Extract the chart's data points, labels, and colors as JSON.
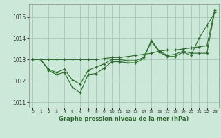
{
  "title": "Graphe pression niveau de la mer (hPa)",
  "background_color": "#cce8d8",
  "plot_bg_color": "#cce8d8",
  "grid_color": "#aaccbb",
  "line_color": "#2d6a2d",
  "xlim": [
    -0.5,
    23.5
  ],
  "ylim": [
    1010.75,
    1015.6
  ],
  "yticks": [
    1011,
    1012,
    1013,
    1014,
    1015
  ],
  "xticks": [
    0,
    1,
    2,
    3,
    4,
    5,
    6,
    7,
    8,
    9,
    10,
    11,
    12,
    13,
    14,
    15,
    16,
    17,
    18,
    19,
    20,
    21,
    22,
    23
  ],
  "series": [
    [
      1013.0,
      1013.0,
      1012.5,
      1012.3,
      1012.4,
      1011.7,
      1011.45,
      1012.3,
      1012.35,
      1012.6,
      1012.9,
      1012.9,
      1012.85,
      1012.85,
      1013.05,
      1013.85,
      1013.35,
      1013.15,
      1013.15,
      1013.35,
      1013.2,
      1014.0,
      1014.6,
      1015.2
    ],
    [
      1013.0,
      1013.0,
      1012.55,
      1012.4,
      1012.55,
      1012.05,
      1011.85,
      1012.5,
      1012.65,
      1012.8,
      1013.0,
      1013.0,
      1012.95,
      1012.95,
      1013.1,
      1013.9,
      1013.4,
      1013.2,
      1013.25,
      1013.4,
      1013.3,
      1013.3,
      1013.3,
      1015.3
    ],
    [
      1013.0,
      1013.0,
      1013.0,
      1013.0,
      1013.0,
      1013.0,
      1013.0,
      1013.0,
      1013.0,
      1013.05,
      1013.1,
      1013.1,
      1013.15,
      1013.2,
      1013.25,
      1013.3,
      1013.4,
      1013.45,
      1013.45,
      1013.5,
      1013.55,
      1013.6,
      1013.65,
      1015.35
    ]
  ]
}
